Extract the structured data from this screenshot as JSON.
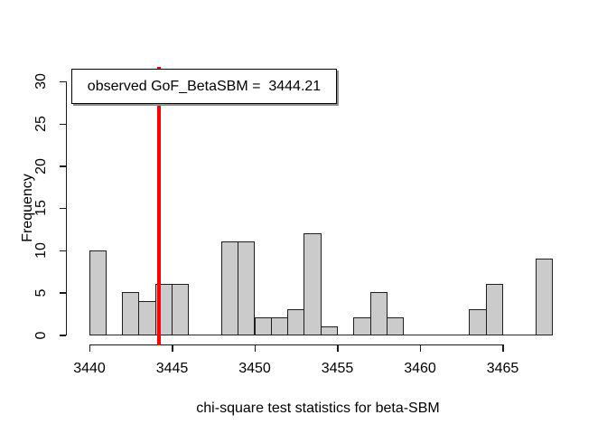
{
  "chart_data": {
    "type": "bar",
    "subtype": "histogram",
    "title": "",
    "xlabel": "chi-square test statistics for beta-SBM",
    "ylabel": "Frequency",
    "bin_start": 3440,
    "bin_width": 1,
    "counts": [
      10,
      0,
      5,
      4,
      6,
      6,
      0,
      0,
      11,
      11,
      2,
      2,
      3,
      12,
      1,
      0,
      2,
      5,
      2,
      0,
      0,
      0,
      0,
      3,
      6,
      0,
      0,
      9
    ],
    "x_ticks": [
      3440,
      3445,
      3450,
      3455,
      3460,
      3465
    ],
    "y_ticks": [
      0,
      5,
      10,
      15,
      20,
      25,
      30
    ],
    "xlim": [
      3438.9,
      3469.1
    ],
    "ylim": [
      0,
      30
    ],
    "grid": false,
    "legend_position": "topleft",
    "bar_fill": "#cbcbcb",
    "bar_border": "#1f1f1f",
    "vline": {
      "x": 3444.21,
      "color": "#ff0000"
    },
    "legend": {
      "text": "observed GoF_BetaSBM =  3444.21"
    }
  }
}
